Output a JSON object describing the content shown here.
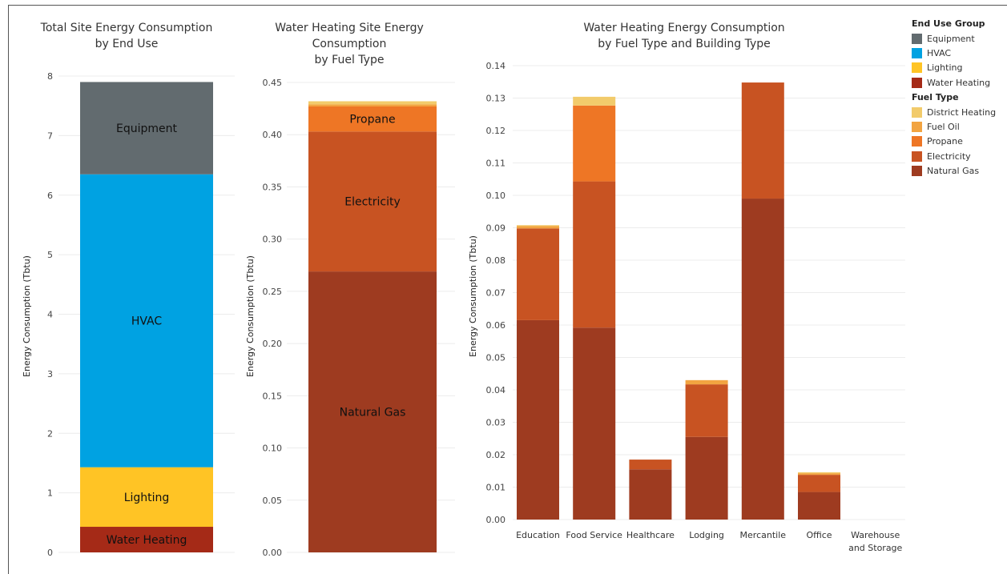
{
  "colors": {
    "equipment": "#626B6F",
    "hvac": "#00A2E2",
    "lighting": "#FFC425",
    "water_heating": "#A52A17",
    "district_heating": "#F2CB6B",
    "fuel_oil": "#F2A441",
    "propane": "#EE7625",
    "electricity": "#C85322",
    "natural_gas": "#9E3B20"
  },
  "legend": {
    "end_use_title": "End Use Group",
    "end_use_items": [
      {
        "label": "Equipment",
        "color": "#626B6F"
      },
      {
        "label": "HVAC",
        "color": "#00A2E2"
      },
      {
        "label": "Lighting",
        "color": "#FFC425"
      },
      {
        "label": "Water Heating",
        "color": "#A52A17"
      }
    ],
    "fuel_title": "Fuel Type",
    "fuel_items": [
      {
        "label": "District Heating",
        "color": "#F2CB6B"
      },
      {
        "label": "Fuel Oil",
        "color": "#F2A441"
      },
      {
        "label": "Propane",
        "color": "#EE7625"
      },
      {
        "label": "Electricity",
        "color": "#C85322"
      },
      {
        "label": "Natural Gas",
        "color": "#9E3B20"
      }
    ]
  },
  "chart_data": [
    {
      "type": "bar",
      "stacked": true,
      "title_lines": [
        "Total Site Energy Consumption",
        "by End Use"
      ],
      "ylabel": "Energy Consumption (Tbtu)",
      "ylim": [
        0,
        8
      ],
      "yticks": [
        "0",
        "1",
        "2",
        "3",
        "4",
        "5",
        "6",
        "7",
        "8"
      ],
      "grid": true,
      "segments": [
        {
          "label": "Water Heating",
          "value": 0.43,
          "color": "#A52A17"
        },
        {
          "label": "Lighting",
          "value": 1.0,
          "color": "#FFC425"
        },
        {
          "label": "HVAC",
          "value": 4.92,
          "color": "#00A2E2"
        },
        {
          "label": "Equipment",
          "value": 1.55,
          "color": "#626B6F"
        }
      ]
    },
    {
      "type": "bar",
      "stacked": true,
      "title_lines": [
        "Water Heating Site Energy",
        "Consumption",
        "by Fuel Type"
      ],
      "ylabel": "Energy Consumption (Tbtu)",
      "ylim": [
        0,
        0.45
      ],
      "yticks": [
        "0.00",
        "0.05",
        "0.10",
        "0.15",
        "0.20",
        "0.25",
        "0.30",
        "0.35",
        "0.40",
        "0.45"
      ],
      "grid": true,
      "segments": [
        {
          "label": "Natural Gas",
          "value": 0.269,
          "color": "#9E3B20"
        },
        {
          "label": "Electricity",
          "value": 0.134,
          "color": "#C85322"
        },
        {
          "label": "Propane",
          "value": 0.024,
          "color": "#EE7625"
        },
        {
          "label": "",
          "value": 0.002,
          "color": "#F2A441"
        },
        {
          "label": "",
          "value": 0.003,
          "color": "#F2CB6B"
        }
      ]
    },
    {
      "type": "bar",
      "stacked": true,
      "title_lines": [
        "Water Heating Energy Consumption",
        "by Fuel Type and Building Type"
      ],
      "ylabel": "Energy Consumption (Tbtu)",
      "ylim": [
        0,
        0.14
      ],
      "yticks": [
        "0.00",
        "0.01",
        "0.02",
        "0.03",
        "0.04",
        "0.05",
        "0.06",
        "0.07",
        "0.08",
        "0.09",
        "0.10",
        "0.11",
        "0.12",
        "0.13",
        "0.14"
      ],
      "grid": true,
      "categories": [
        [
          "Education"
        ],
        [
          "Food Service"
        ],
        [
          "Healthcare"
        ],
        [
          "Lodging"
        ],
        [
          "Mercantile"
        ],
        [
          "Office"
        ],
        [
          "Warehouse",
          "and Storage"
        ]
      ],
      "series": [
        {
          "name": "Natural Gas",
          "color": "#9E3B20",
          "values": [
            0.0615,
            0.0592,
            0.0155,
            0.0255,
            0.099,
            0.0085,
            0
          ]
        },
        {
          "name": "Electricity",
          "color": "#C85322",
          "values": [
            0.0283,
            0.0451,
            0.003,
            0.0162,
            0.0358,
            0.0053,
            0
          ]
        },
        {
          "name": "Propane",
          "color": "#EE7625",
          "values": [
            0,
            0.0234,
            0,
            0,
            0,
            0,
            0
          ]
        },
        {
          "name": "Fuel Oil",
          "color": "#F2A441",
          "values": [
            0.0007,
            0,
            0,
            0.0013,
            0,
            0.0005,
            0
          ]
        },
        {
          "name": "District Heating",
          "color": "#F2CB6B",
          "values": [
            0.0003,
            0.0027,
            0,
            0,
            0,
            0.0003,
            0
          ]
        }
      ]
    }
  ]
}
